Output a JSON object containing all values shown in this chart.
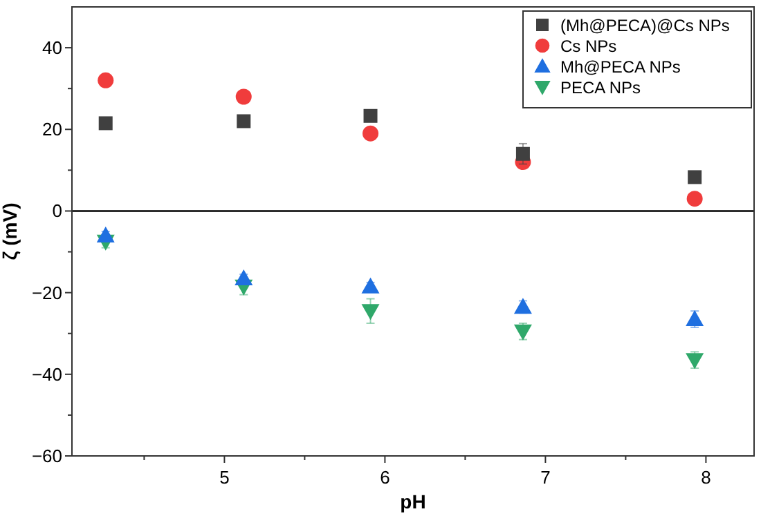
{
  "chart_data": {
    "type": "scatter",
    "xlabel": "pH",
    "ylabel": "ζ (mV)",
    "xlim": [
      4.05,
      8.3
    ],
    "ylim": [
      -60,
      50
    ],
    "xticks": [
      {
        "value": 4.5,
        "label": null
      },
      5,
      {
        "value": 5.5,
        "label": null
      },
      6,
      {
        "value": 6.5,
        "label": null
      },
      7,
      {
        "value": 7.5,
        "label": null
      },
      8
    ],
    "yticks": [
      -60,
      {
        "value": -50,
        "label": null
      },
      -40,
      {
        "value": -30,
        "label": null
      },
      -20,
      {
        "value": -10,
        "label": null
      },
      0,
      {
        "value": 10,
        "label": null
      },
      20,
      {
        "value": 30,
        "label": null
      },
      40
    ],
    "grid": false,
    "legend": "top right",
    "ref_lines": [
      {
        "axis": "y",
        "value": 0,
        "color": "#000000"
      }
    ],
    "series": [
      {
        "name": "(Mh@PECA)@Cs NPs",
        "color": "#404040",
        "marker": "square",
        "x": [
          4.26,
          5.12,
          5.91,
          6.86,
          7.93
        ],
        "values": [
          21.5,
          22,
          23.3,
          14,
          8.3
        ],
        "errors": [
          1,
          1,
          1,
          2.5,
          1
        ]
      },
      {
        "name": "Cs NPs",
        "color": "#f03c3c",
        "marker": "circle",
        "x": [
          4.26,
          5.12,
          5.91,
          6.86,
          7.93
        ],
        "values": [
          32,
          28,
          19,
          12,
          3
        ],
        "errors": [
          1,
          1,
          1,
          1,
          1
        ]
      },
      {
        "name": "Mh@PECA NPs",
        "color": "#1f6fe0",
        "marker": "triangle",
        "x": [
          4.26,
          5.12,
          5.91,
          6.86,
          7.93
        ],
        "values": [
          -6,
          -16.5,
          -18.5,
          -23.5,
          -26.5
        ],
        "errors": [
          1,
          1,
          1,
          1.5,
          2
        ]
      },
      {
        "name": "PECA NPs",
        "color": "#2fa86a",
        "marker": "triangle-down",
        "x": [
          4.26,
          5.12,
          5.91,
          6.86,
          7.93
        ],
        "values": [
          -7.5,
          -18.5,
          -24.5,
          -29.5,
          -36.5
        ],
        "errors": [
          1.5,
          2,
          3,
          2,
          2
        ]
      }
    ]
  }
}
